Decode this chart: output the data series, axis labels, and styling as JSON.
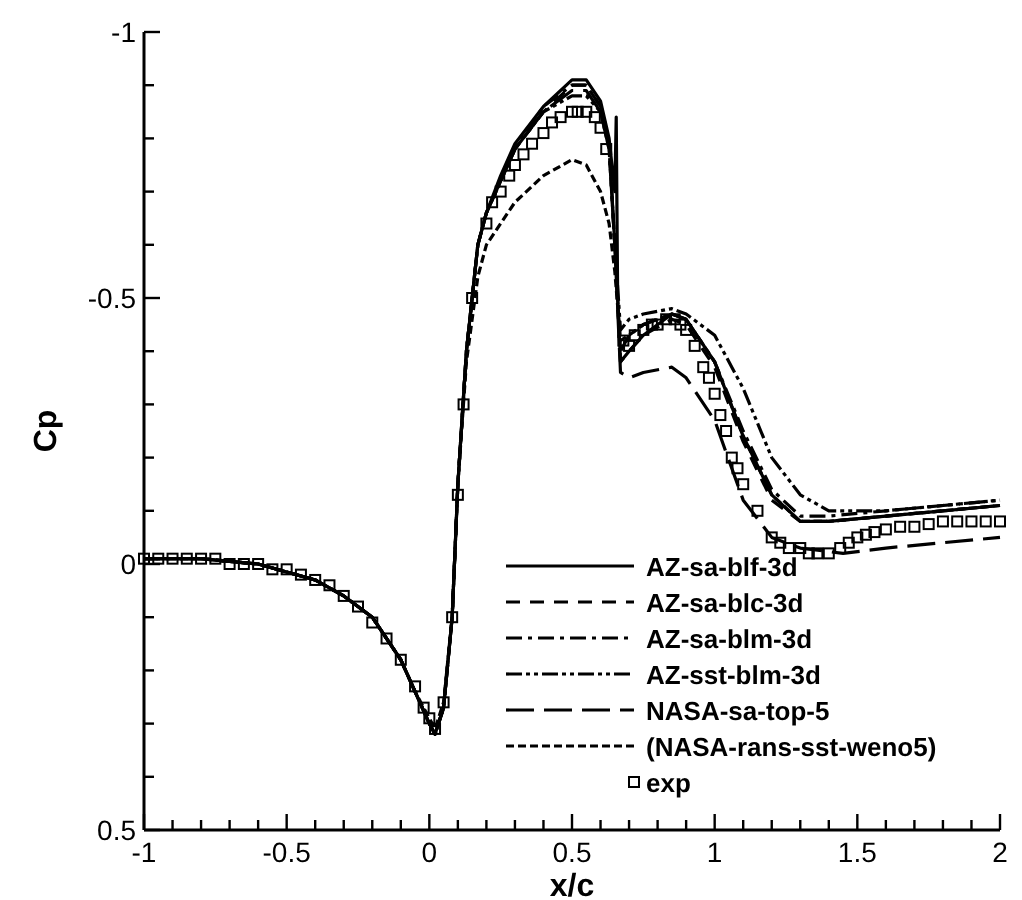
{
  "chart_data": {
    "type": "line",
    "xlabel": "x/c",
    "ylabel": "Cp",
    "xlim": [
      -1,
      2
    ],
    "ylim": [
      0.5,
      -1
    ],
    "xticks": [
      -1,
      {
        "value": -0.9,
        "label": null
      },
      {
        "value": -0.8,
        "label": null
      },
      {
        "value": -0.7,
        "label": null
      },
      {
        "value": -0.6,
        "label": null
      },
      -0.5,
      {
        "value": -0.4,
        "label": null
      },
      {
        "value": -0.3,
        "label": null
      },
      {
        "value": -0.2,
        "label": null
      },
      {
        "value": -0.1,
        "label": null
      },
      0,
      {
        "value": 0.1,
        "label": null
      },
      {
        "value": 0.2,
        "label": null
      },
      {
        "value": 0.3,
        "label": null
      },
      {
        "value": 0.4,
        "label": null
      },
      0.5,
      {
        "value": 0.6,
        "label": null
      },
      {
        "value": 0.7,
        "label": null
      },
      {
        "value": 0.8,
        "label": null
      },
      {
        "value": 0.9,
        "label": null
      },
      1,
      {
        "value": 1.1,
        "label": null
      },
      {
        "value": 1.2,
        "label": null
      },
      {
        "value": 1.3,
        "label": null
      },
      {
        "value": 1.4,
        "label": null
      },
      1.5,
      {
        "value": 1.6,
        "label": null
      },
      {
        "value": 1.7,
        "label": null
      },
      {
        "value": 1.8,
        "label": null
      },
      {
        "value": 1.9,
        "label": null
      },
      2
    ],
    "yticks": [
      -1,
      {
        "value": -0.9,
        "label": null
      },
      {
        "value": -0.8,
        "label": null
      },
      {
        "value": -0.7,
        "label": null
      },
      {
        "value": -0.6,
        "label": null
      },
      -0.5,
      {
        "value": -0.4,
        "label": null
      },
      {
        "value": -0.3,
        "label": null
      },
      {
        "value": -0.2,
        "label": null
      },
      {
        "value": -0.1,
        "label": null
      },
      0,
      {
        "value": 0.1,
        "label": null
      },
      {
        "value": 0.2,
        "label": null
      },
      {
        "value": 0.3,
        "label": null
      },
      {
        "value": 0.4,
        "label": null
      },
      0.5
    ],
    "grid": false,
    "legend": "bottom right",
    "series": [
      {
        "name": "AZ-sa-blf-3d",
        "color": "#000000",
        "line_style": "solid",
        "x": [
          -1,
          -0.8,
          -0.6,
          -0.4,
          -0.3,
          -0.2,
          -0.1,
          -0.05,
          0,
          0.02,
          0.05,
          0.08,
          0.1,
          0.13,
          0.17,
          0.2,
          0.25,
          0.3,
          0.4,
          0.5,
          0.55,
          0.6,
          0.63,
          0.65,
          0.655,
          0.66,
          0.67,
          0.7,
          0.75,
          0.85,
          0.9,
          1,
          1.1,
          1.2,
          1.3,
          1.4,
          1.6,
          1.8,
          2
        ],
        "values": [
          -0.01,
          -0.01,
          0,
          0.03,
          0.06,
          0.1,
          0.18,
          0.24,
          0.3,
          0.32,
          0.27,
          0.1,
          -0.15,
          -0.4,
          -0.6,
          -0.66,
          -0.73,
          -0.79,
          -0.86,
          -0.91,
          -0.91,
          -0.87,
          -0.8,
          -0.7,
          -0.84,
          -0.5,
          -0.38,
          -0.4,
          -0.43,
          -0.47,
          -0.46,
          -0.38,
          -0.24,
          -0.13,
          -0.08,
          -0.08,
          -0.09,
          -0.1,
          -0.11
        ]
      },
      {
        "name": "AZ-sa-blc-3d",
        "color": "#000000",
        "line_style": "dashed",
        "x": [
          -1,
          -0.8,
          -0.6,
          -0.4,
          -0.3,
          -0.2,
          -0.1,
          -0.05,
          0,
          0.02,
          0.05,
          0.08,
          0.1,
          0.13,
          0.17,
          0.2,
          0.25,
          0.3,
          0.4,
          0.5,
          0.55,
          0.6,
          0.63,
          0.65,
          0.67,
          0.7,
          0.75,
          0.85,
          0.9,
          1,
          1.1,
          1.2,
          1.3,
          1.4,
          1.6,
          1.8,
          2
        ],
        "values": [
          -0.01,
          -0.01,
          0,
          0.03,
          0.06,
          0.1,
          0.18,
          0.24,
          0.3,
          0.32,
          0.27,
          0.1,
          -0.15,
          -0.4,
          -0.6,
          -0.66,
          -0.72,
          -0.78,
          -0.85,
          -0.9,
          -0.9,
          -0.86,
          -0.79,
          -0.6,
          -0.38,
          -0.4,
          -0.43,
          -0.46,
          -0.45,
          -0.37,
          -0.23,
          -0.12,
          -0.08,
          -0.08,
          -0.09,
          -0.1,
          -0.11
        ]
      },
      {
        "name": "AZ-sa-blm-3d",
        "color": "#000000",
        "line_style": "dashdot",
        "x": [
          -1,
          -0.8,
          -0.6,
          -0.4,
          -0.3,
          -0.2,
          -0.1,
          -0.05,
          0,
          0.02,
          0.05,
          0.08,
          0.1,
          0.13,
          0.17,
          0.2,
          0.25,
          0.3,
          0.4,
          0.5,
          0.55,
          0.6,
          0.63,
          0.65,
          0.67,
          0.7,
          0.75,
          0.85,
          0.9,
          1,
          1.1,
          1.2,
          1.3,
          1.4,
          1.6,
          1.8,
          2
        ],
        "values": [
          -0.01,
          -0.01,
          0,
          0.03,
          0.06,
          0.1,
          0.18,
          0.24,
          0.3,
          0.32,
          0.27,
          0.1,
          -0.15,
          -0.4,
          -0.6,
          -0.66,
          -0.72,
          -0.78,
          -0.86,
          -0.9,
          -0.9,
          -0.86,
          -0.79,
          -0.6,
          -0.4,
          -0.43,
          -0.45,
          -0.47,
          -0.46,
          -0.38,
          -0.25,
          -0.14,
          -0.09,
          -0.09,
          -0.1,
          -0.11,
          -0.12
        ]
      },
      {
        "name": "AZ-sst-blm-3d",
        "color": "#000000",
        "line_style": "dashdotdot",
        "x": [
          -1,
          -0.8,
          -0.6,
          -0.4,
          -0.3,
          -0.2,
          -0.1,
          -0.05,
          0,
          0.02,
          0.05,
          0.08,
          0.1,
          0.13,
          0.17,
          0.2,
          0.25,
          0.3,
          0.4,
          0.5,
          0.55,
          0.6,
          0.63,
          0.65,
          0.67,
          0.7,
          0.75,
          0.85,
          0.9,
          1,
          1.1,
          1.2,
          1.3,
          1.4,
          1.6,
          1.8,
          2
        ],
        "values": [
          -0.01,
          -0.01,
          0,
          0.03,
          0.06,
          0.1,
          0.18,
          0.24,
          0.3,
          0.32,
          0.27,
          0.1,
          -0.15,
          -0.4,
          -0.6,
          -0.66,
          -0.72,
          -0.78,
          -0.85,
          -0.88,
          -0.88,
          -0.85,
          -0.78,
          -0.6,
          -0.44,
          -0.46,
          -0.47,
          -0.48,
          -0.47,
          -0.43,
          -0.33,
          -0.2,
          -0.13,
          -0.1,
          -0.1,
          -0.11,
          -0.12
        ]
      },
      {
        "name": "NASA-sa-top-5",
        "color": "#000000",
        "line_style": "longdash",
        "x": [
          -1,
          -0.8,
          -0.6,
          -0.4,
          -0.3,
          -0.2,
          -0.1,
          -0.05,
          0,
          0.02,
          0.05,
          0.08,
          0.1,
          0.13,
          0.17,
          0.2,
          0.25,
          0.3,
          0.4,
          0.5,
          0.55,
          0.6,
          0.63,
          0.65,
          0.67,
          0.7,
          0.75,
          0.85,
          0.9,
          1,
          1.1,
          1.2,
          1.3,
          1.45,
          1.6,
          1.8,
          2
        ],
        "values": [
          -0.01,
          -0.01,
          0,
          0.03,
          0.06,
          0.1,
          0.18,
          0.24,
          0.3,
          0.32,
          0.27,
          0.1,
          -0.15,
          -0.4,
          -0.6,
          -0.66,
          -0.72,
          -0.78,
          -0.85,
          -0.89,
          -0.89,
          -0.85,
          -0.78,
          -0.6,
          -0.36,
          -0.35,
          -0.36,
          -0.37,
          -0.35,
          -0.27,
          -0.12,
          -0.05,
          -0.03,
          -0.02,
          -0.03,
          -0.04,
          -0.05
        ]
      },
      {
        "name": "(NASA-rans-sst-weno5)",
        "color": "#000000",
        "line_style": "shortdash",
        "x": [
          -1,
          -0.8,
          -0.6,
          -0.4,
          -0.3,
          -0.2,
          -0.1,
          -0.05,
          0,
          0.02,
          0.05,
          0.08,
          0.1,
          0.13,
          0.17,
          0.2,
          0.25,
          0.3,
          0.4,
          0.5,
          0.55,
          0.6,
          0.63,
          0.65,
          0.67,
          0.7,
          0.75,
          0.85,
          0.9,
          1,
          1.1,
          1.2,
          1.3,
          1.4,
          1.6,
          1.8,
          2
        ],
        "values": [
          -0.01,
          -0.01,
          0,
          0.03,
          0.06,
          0.1,
          0.18,
          0.24,
          0.29,
          0.31,
          0.26,
          0.1,
          -0.15,
          -0.38,
          -0.54,
          -0.6,
          -0.64,
          -0.68,
          -0.73,
          -0.76,
          -0.75,
          -0.7,
          -0.64,
          -0.55,
          -0.42,
          -0.43,
          -0.45,
          -0.47,
          -0.46,
          -0.38,
          -0.24,
          -0.13,
          -0.08,
          -0.08,
          -0.09,
          -0.1,
          -0.11
        ]
      },
      {
        "name": "exp",
        "type": "scatter",
        "color": "#000000",
        "marker": "square",
        "x": [
          -1,
          -0.95,
          -0.9,
          -0.85,
          -0.8,
          -0.75,
          -0.7,
          -0.65,
          -0.6,
          -0.55,
          -0.5,
          -0.45,
          -0.4,
          -0.35,
          -0.3,
          -0.25,
          -0.2,
          -0.15,
          -0.1,
          -0.05,
          -0.02,
          0,
          0.02,
          0.05,
          0.08,
          0.1,
          0.12,
          0.15,
          0.2,
          0.22,
          0.25,
          0.28,
          0.3,
          0.33,
          0.36,
          0.4,
          0.43,
          0.46,
          0.5,
          0.52,
          0.55,
          0.58,
          0.6,
          0.62,
          0.68,
          0.7,
          0.72,
          0.75,
          0.78,
          0.8,
          0.83,
          0.86,
          0.88,
          0.9,
          0.93,
          0.96,
          0.98,
          1,
          1.02,
          1.04,
          1.06,
          1.08,
          1.1,
          1.15,
          1.2,
          1.23,
          1.26,
          1.3,
          1.33,
          1.36,
          1.4,
          1.44,
          1.47,
          1.5,
          1.53,
          1.56,
          1.6,
          1.65,
          1.7,
          1.75,
          1.8,
          1.85,
          1.9,
          1.95,
          2
        ],
        "values": [
          -0.01,
          -0.01,
          -0.01,
          -0.01,
          -0.01,
          -0.01,
          0,
          0,
          0,
          0.01,
          0.01,
          0.02,
          0.03,
          0.04,
          0.06,
          0.08,
          0.11,
          0.14,
          0.18,
          0.23,
          0.27,
          0.29,
          0.31,
          0.26,
          0.1,
          -0.13,
          -0.3,
          -0.5,
          -0.64,
          -0.68,
          -0.7,
          -0.73,
          -0.75,
          -0.77,
          -0.79,
          -0.81,
          -0.83,
          -0.84,
          -0.85,
          -0.85,
          -0.85,
          -0.84,
          -0.82,
          -0.78,
          -0.42,
          -0.41,
          -0.43,
          -0.44,
          -0.45,
          -0.45,
          -0.46,
          -0.46,
          -0.45,
          -0.44,
          -0.41,
          -0.37,
          -0.35,
          -0.32,
          -0.28,
          -0.25,
          -0.2,
          -0.18,
          -0.15,
          -0.1,
          -0.05,
          -0.04,
          -0.03,
          -0.03,
          -0.02,
          -0.02,
          -0.02,
          -0.03,
          -0.04,
          -0.05,
          -0.055,
          -0.06,
          -0.065,
          -0.07,
          -0.07,
          -0.075,
          -0.08,
          -0.08,
          -0.08,
          -0.08,
          -0.08
        ]
      }
    ]
  }
}
